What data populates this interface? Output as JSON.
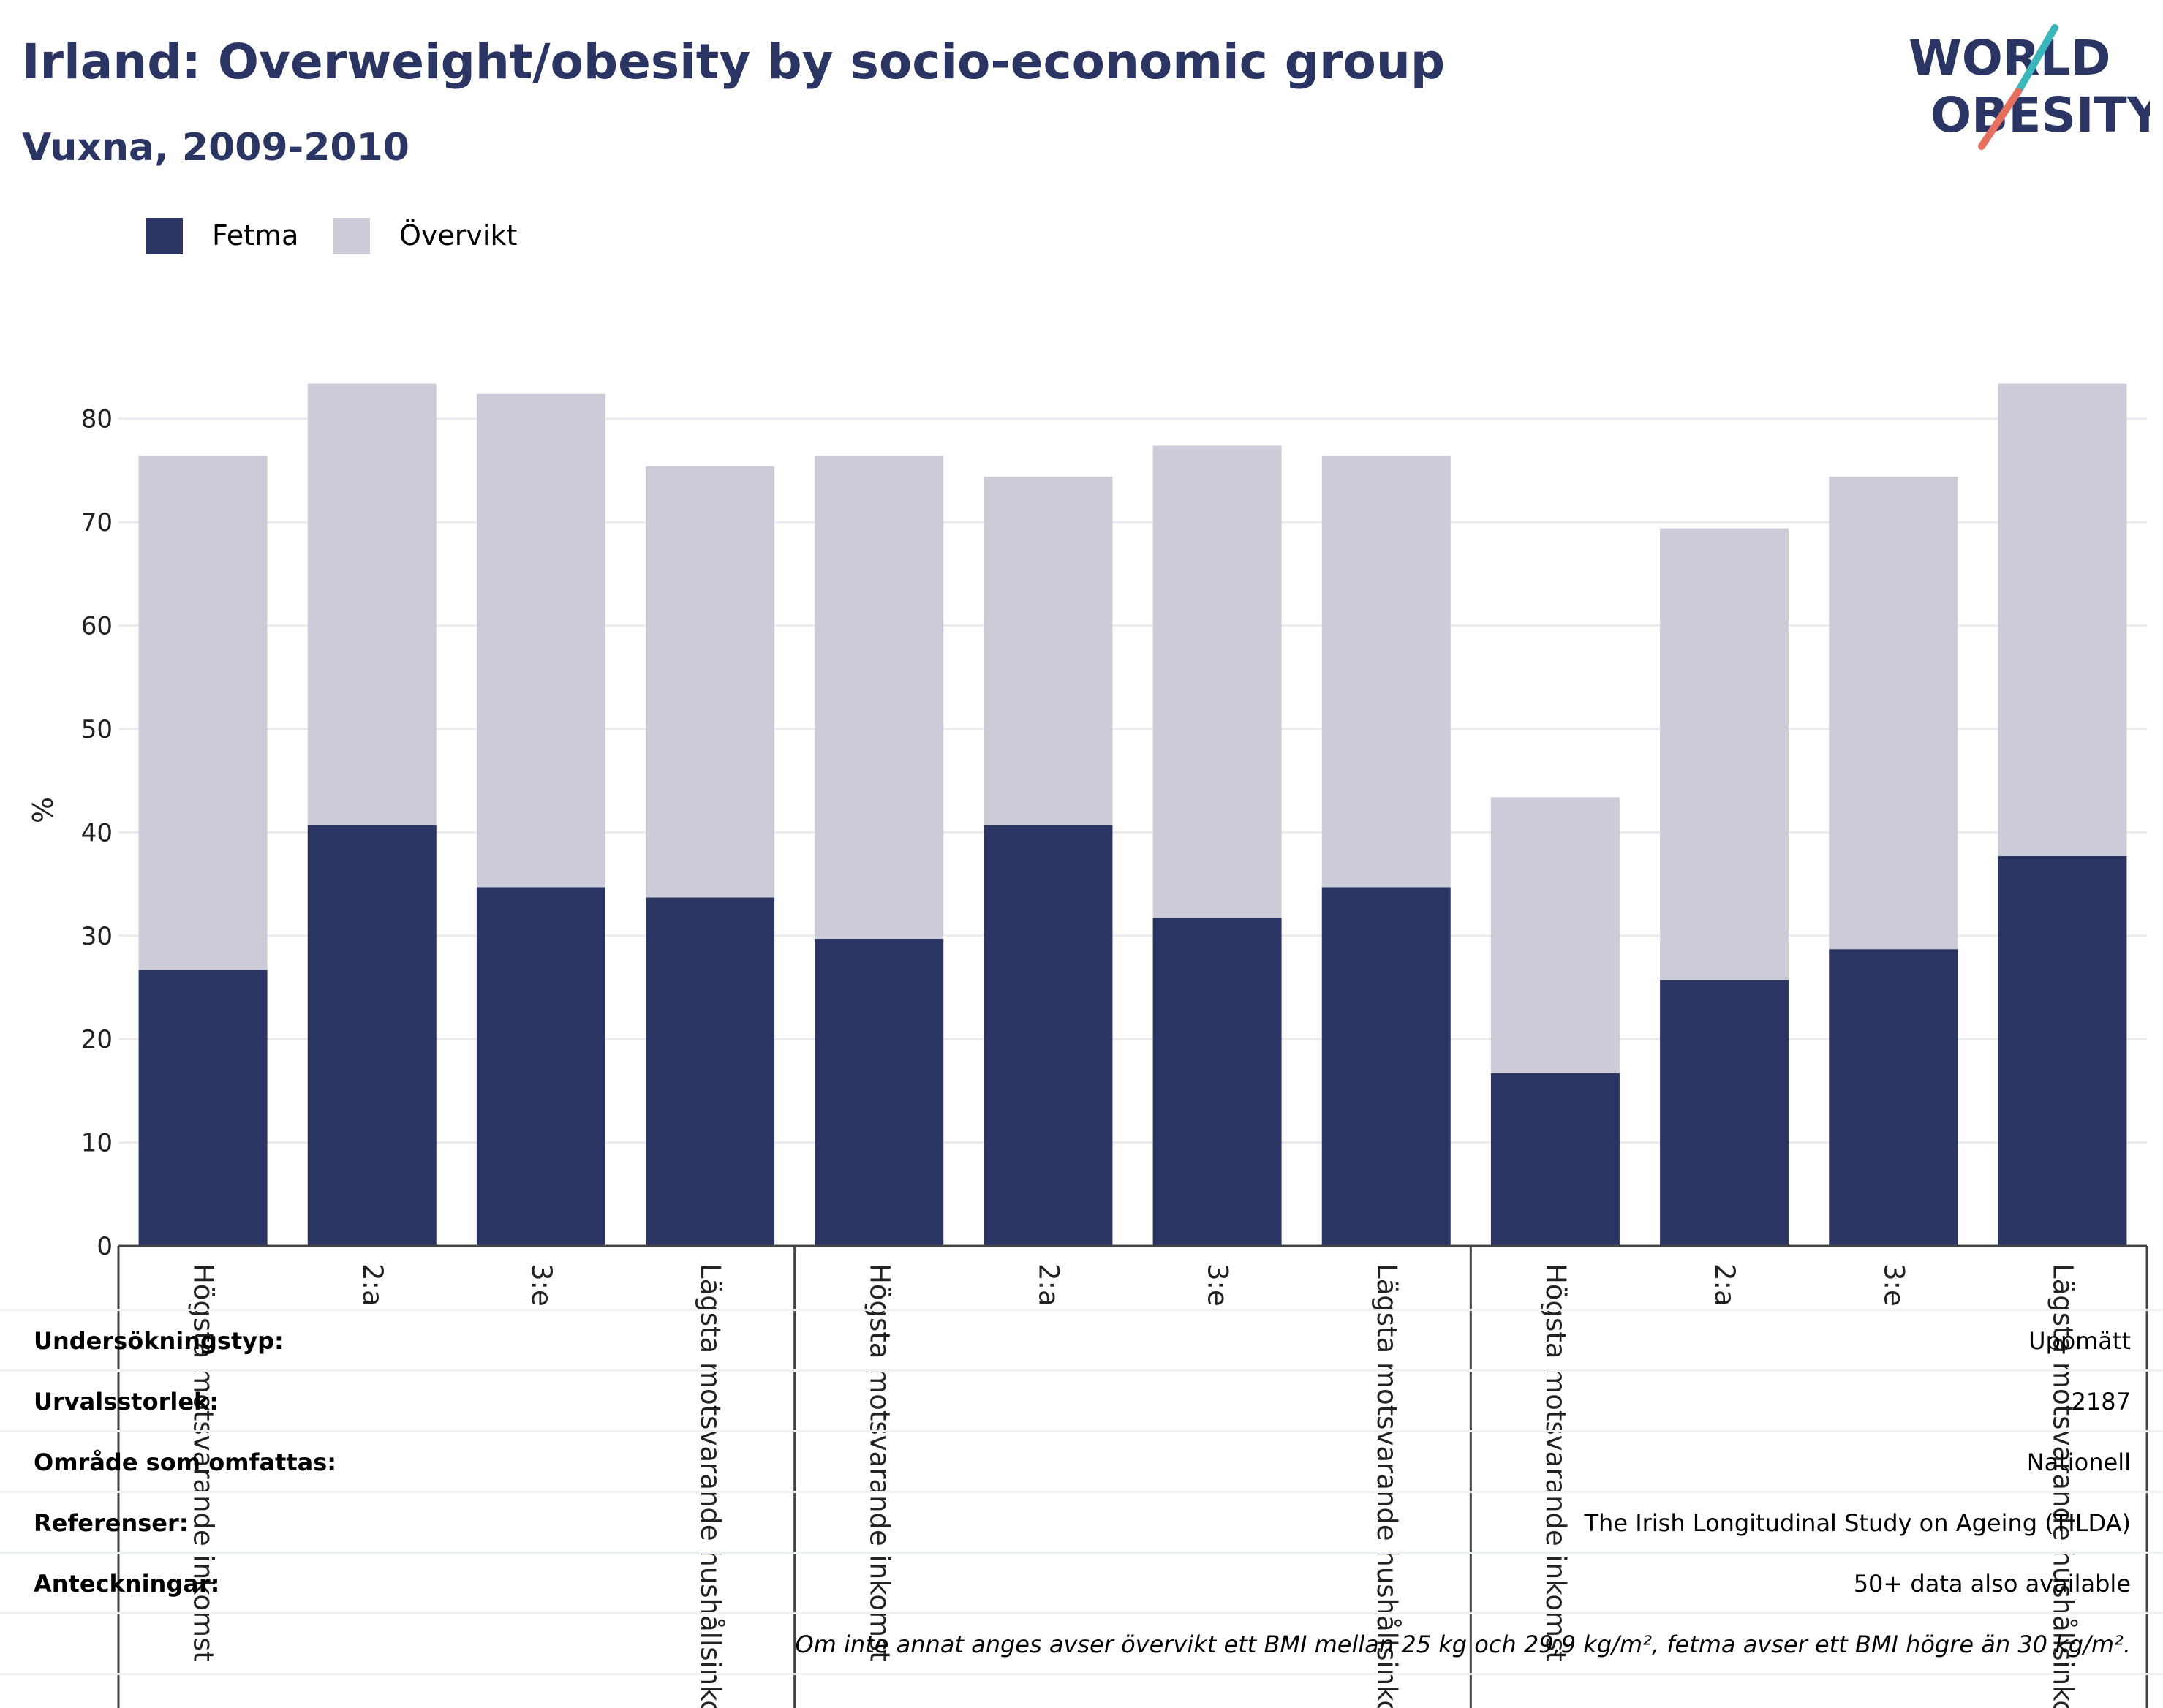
{
  "header": {
    "title": "Irland: Overweight/obesity by socio-economic group",
    "subtitle": "Vuxna, 2009-2010"
  },
  "logo": {
    "line1": "WORLD",
    "line2": "OBESITY",
    "text_color": "#2b3563",
    "accent_teal": "#3bb6bd",
    "accent_coral": "#e5705e"
  },
  "legend": [
    {
      "name": "Fetma",
      "color": "#2b3563"
    },
    {
      "name": "Övervikt",
      "color": "#cbccd8"
    }
  ],
  "chart_data": {
    "type": "bar",
    "stacked": true,
    "categories": [
      "Högsta motsvarande inkomst",
      "2:a",
      "3:e",
      "Lägsta motsvarande hushållsinkomst",
      "Högsta motsvarande inkomst",
      "2:a",
      "3:e",
      "Lägsta motsvarande hushållsinkomst",
      "Högsta motsvarande inkomst",
      "2:a",
      "3:e",
      "Lägsta motsvarande hushållsinkomst"
    ],
    "groups": [
      [
        "Högsta motsvarande inkomst",
        "2:a",
        "3:e",
        "Lägsta motsvarande hushållsinkomst"
      ],
      [
        "Högsta motsvarande inkomst",
        "2:a",
        "3:e",
        "Lägsta motsvarande hushållsinkomst"
      ],
      [
        "Högsta motsvarande inkomst",
        "2:a",
        "3:e",
        "Lägsta motsvarande hushållsinkomst"
      ]
    ],
    "series": [
      {
        "name": "Fetma",
        "color": "#2b3563",
        "values": [
          26.7,
          40.7,
          34.7,
          33.7,
          29.7,
          40.7,
          31.7,
          34.7,
          16.7,
          25.7,
          28.7,
          37.7
        ]
      },
      {
        "name": "Övervikt",
        "color": "#cbccd8",
        "values": [
          49.7,
          42.7,
          47.7,
          41.7,
          46.7,
          33.7,
          45.7,
          41.7,
          26.7,
          43.7,
          45.7,
          45.7
        ]
      }
    ],
    "totals": [
      76.4,
      83.4,
      82.4,
      75.4,
      76.4,
      74.4,
      77.4,
      76.4,
      43.4,
      69.4,
      74.4,
      83.4
    ],
    "ylabel": "%",
    "ylim": [
      0,
      85
    ],
    "yticks": [
      0,
      10,
      20,
      30,
      40,
      50,
      60,
      70,
      80
    ],
    "grid": true,
    "legend_position": "top-left"
  },
  "info": {
    "rows": [
      {
        "key": "Undersökningstyp:",
        "value": "Uppmätt"
      },
      {
        "key": "Urvalsstorlek:",
        "value": "2187"
      },
      {
        "key": "Område som omfattas:",
        "value": "Nationell"
      },
      {
        "key": "Referenser:",
        "value": "The Irish Longitudinal Study on Ageing (TILDA)"
      },
      {
        "key": "Anteckningar:",
        "value": "50+ data also available"
      },
      {
        "key": "",
        "value": "Om inte annat anges avser övervikt ett BMI mellan 25 kg och 29,9 kg/m², fetma avser ett BMI högre än 30 kg/m²."
      }
    ]
  }
}
